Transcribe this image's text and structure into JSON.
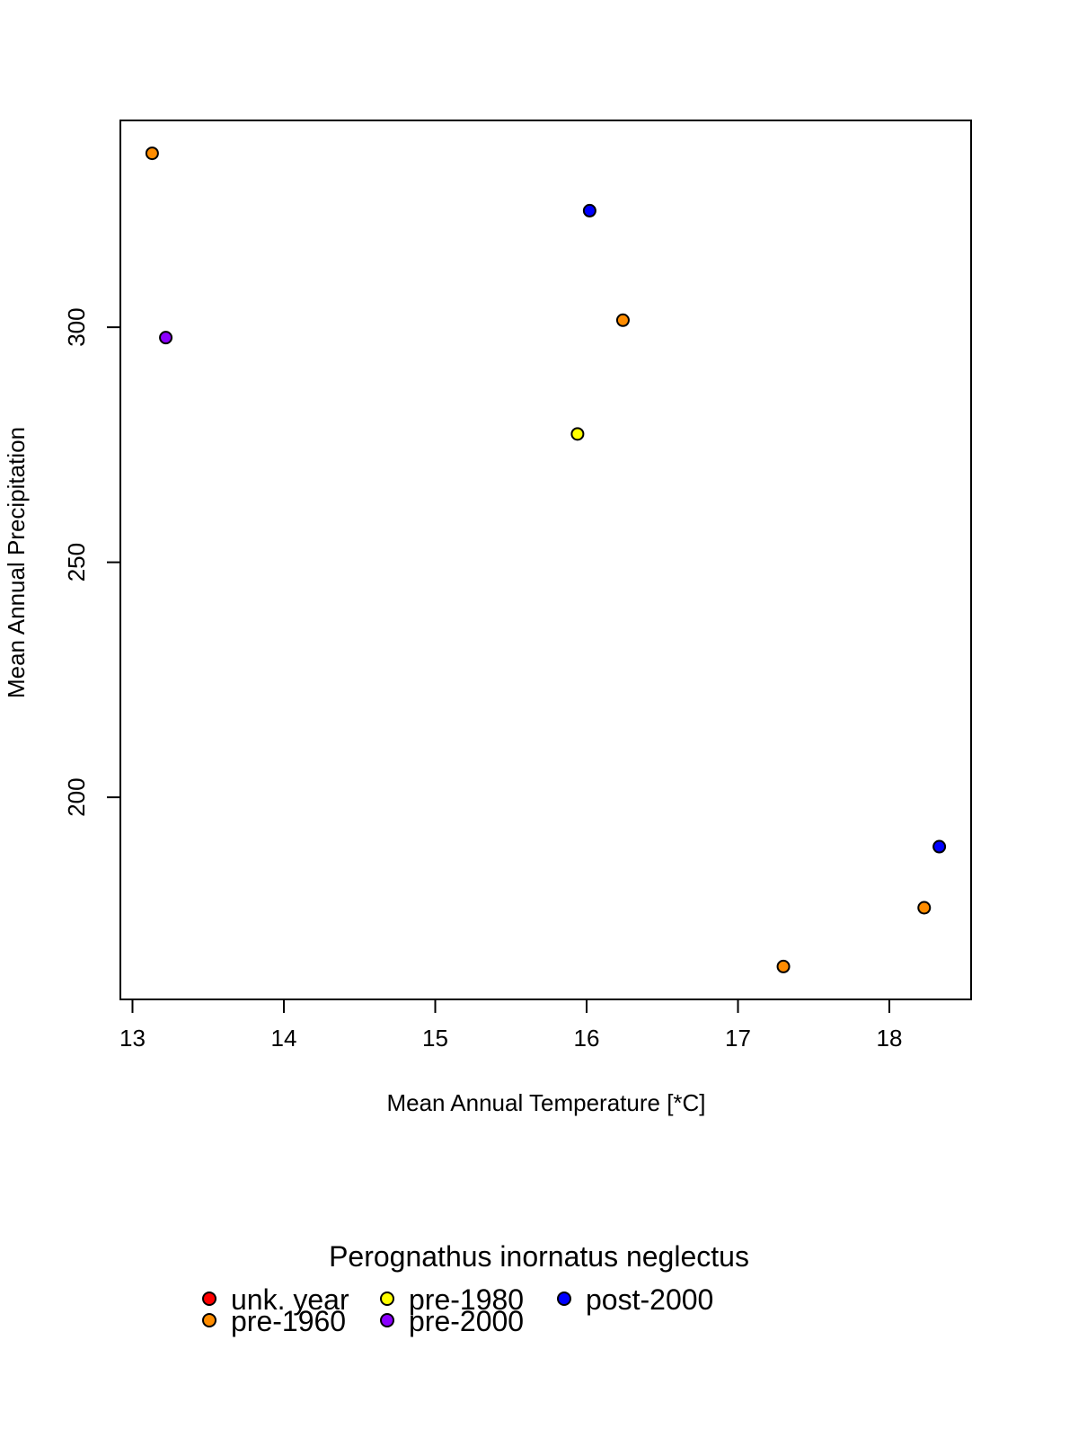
{
  "chart_data": {
    "type": "scatter",
    "title": "",
    "xlabel": "Mean Annual Temperature [*C]",
    "ylabel": "Mean Annual Precipitation",
    "xlim": [
      12.92,
      18.54
    ],
    "ylim": [
      157,
      344
    ],
    "xticks": [
      13,
      14,
      15,
      16,
      17,
      18
    ],
    "yticks": [
      200,
      250,
      300
    ],
    "grid": false,
    "legend_title": "Perognathus inornatus neglectus",
    "legend_position": "bottom-center",
    "series": [
      {
        "name": "unk. year",
        "color": "#ff0000",
        "x": [],
        "y": []
      },
      {
        "name": "pre-1960",
        "color": "#ff8c00",
        "x": [
          13.13,
          16.24,
          18.23,
          17.3
        ],
        "y": [
          337.0,
          301.5,
          176.5,
          164.0
        ]
      },
      {
        "name": "pre-1980",
        "color": "#ffff00",
        "x": [
          15.94
        ],
        "y": [
          277.3
        ]
      },
      {
        "name": "pre-2000",
        "color": "#8b00ff",
        "x": [
          13.22
        ],
        "y": [
          297.8
        ]
      },
      {
        "name": "post-2000",
        "color": "#0000ff",
        "x": [
          16.02,
          18.33
        ],
        "y": [
          324.8,
          189.5
        ]
      }
    ]
  }
}
